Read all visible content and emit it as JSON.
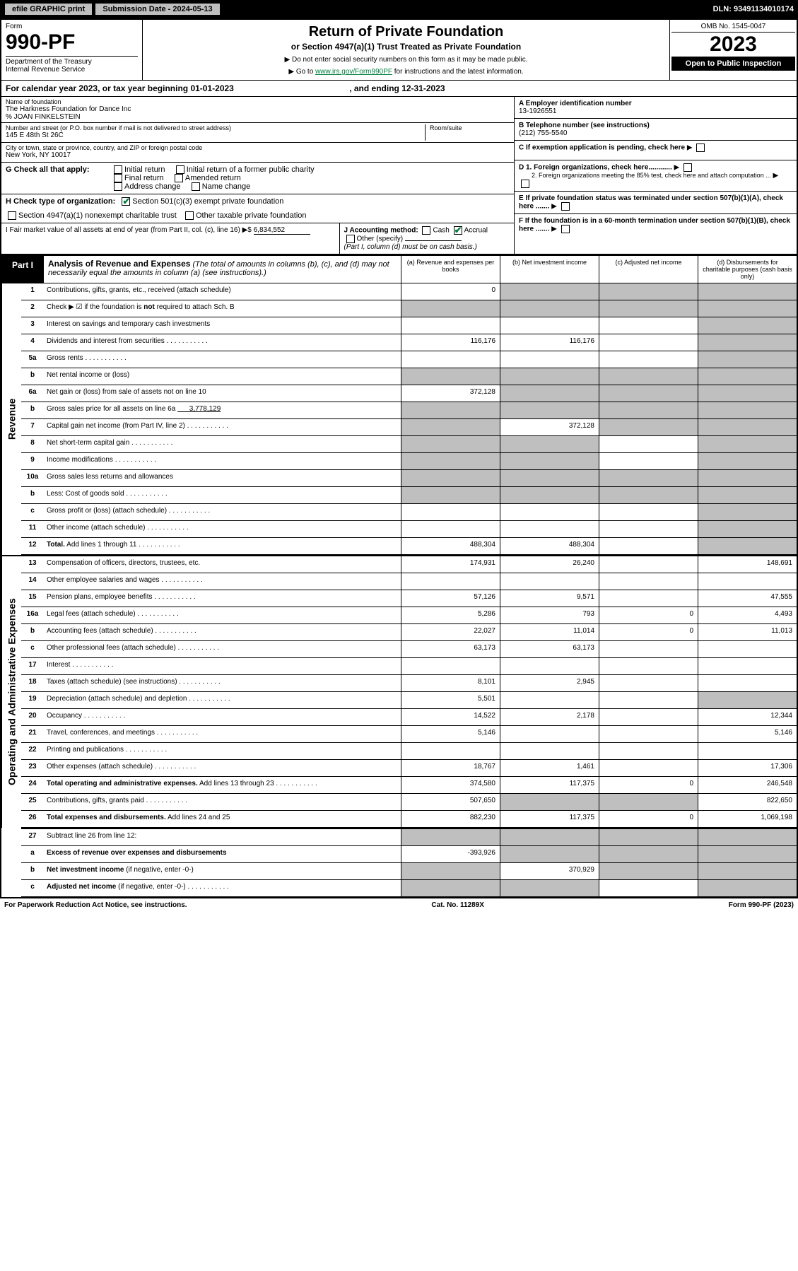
{
  "topbar": {
    "efile": "efile GRAPHIC print",
    "subdate_label": "Submission Date - 2024-05-13",
    "dln": "DLN: 93491134010174"
  },
  "hdr": {
    "form": "Form",
    "num": "990-PF",
    "dept": "Department of the Treasury\nInternal Revenue Service",
    "title": "Return of Private Foundation",
    "sub": "or Section 4947(a)(1) Trust Treated as Private Foundation",
    "instr1": "▶ Do not enter social security numbers on this form as it may be made public.",
    "instr2": "▶ Go to ",
    "link": "www.irs.gov/Form990PF",
    "instr3": " for instructions and the latest information.",
    "omb": "OMB No. 1545-0047",
    "year": "2023",
    "open": "Open to Public Inspection"
  },
  "caly": {
    "pre": "For calendar year 2023, or tax year beginning ",
    "start": "01-01-2023",
    "mid": ", and ending ",
    "end": "12-31-2023"
  },
  "name": {
    "lbl": "Name of foundation",
    "v1": "The Harkness Foundation for Dance Inc",
    "v2": "% JOAN FINKELSTEIN"
  },
  "addr": {
    "lbl": "Number and street (or P.O. box number if mail is not delivered to street address)",
    "val": "145 E 48th St 26C",
    "room": "Room/suite"
  },
  "city": {
    "lbl": "City or town, state or province, country, and ZIP or foreign postal code",
    "val": "New York, NY  10017"
  },
  "A": {
    "lbl": "A Employer identification number",
    "val": "13-1926551"
  },
  "B": {
    "lbl": "B Telephone number (see instructions)",
    "val": "(212) 755-5540"
  },
  "C": {
    "lbl": "C If exemption application is pending, check here"
  },
  "D": {
    "d1": "D 1. Foreign organizations, check here............",
    "d2": "2. Foreign organizations meeting the 85% test, check here and attach computation ..."
  },
  "E": {
    "lbl": "E If private foundation status was terminated under section 507(b)(1)(A), check here ......."
  },
  "F": {
    "lbl": "F If the foundation is in a 60-month termination under section 507(b)(1)(B), check here ......."
  },
  "G": {
    "lbl": "G Check all that apply:",
    "opts": [
      "Initial return",
      "Initial return of a former public charity",
      "Final return",
      "Amended return",
      "Address change",
      "Name change"
    ]
  },
  "H": {
    "lbl": "H Check type of organization:",
    "o1": "Section 501(c)(3) exempt private foundation",
    "o2": "Section 4947(a)(1) nonexempt charitable trust",
    "o3": "Other taxable private foundation"
  },
  "I": {
    "lbl": "I Fair market value of all assets at end of year (from Part II, col. (c), line 16) ▶$",
    "val": "6,834,552"
  },
  "J": {
    "lbl": "J Accounting method:",
    "cash": "Cash",
    "acc": "Accrual",
    "other": "Other (specify)",
    "note": "(Part I, column (d) must be on cash basis.)"
  },
  "part": {
    "lbl": "Part I",
    "title": "Analysis of Revenue and Expenses",
    "note": "(The total of amounts in columns (b), (c), and (d) may not necessarily equal the amounts in column (a) (see instructions).)",
    "ca": "(a) Revenue and expenses per books",
    "cb": "(b) Net investment income",
    "cc": "(c) Adjusted net income",
    "cd": "(d) Disbursements for charitable purposes (cash basis only)"
  },
  "rows": [
    {
      "n": "1",
      "d": "Contributions, gifts, grants, etc., received (attach schedule)",
      "a": "0",
      "b": "",
      "c": "",
      "dc": "",
      "gb": true,
      "gc": true,
      "gd": true
    },
    {
      "n": "2",
      "d": "Check ▶ ☑ if the foundation is <b>not</b> required to attach Sch. B",
      "a": "",
      "gb": true,
      "gc": true,
      "gd": true,
      "ga": true
    },
    {
      "n": "3",
      "d": "Interest on savings and temporary cash investments",
      "a": "",
      "b": "",
      "c": "",
      "dc": "",
      "gd": true
    },
    {
      "n": "4",
      "d": "Dividends and interest from securities",
      "dots": true,
      "a": "116,176",
      "b": "116,176",
      "c": "",
      "dc": "",
      "gd": true
    },
    {
      "n": "5a",
      "d": "Gross rents",
      "dots": true,
      "a": "",
      "b": "",
      "c": "",
      "dc": "",
      "gd": true
    },
    {
      "n": "b",
      "d": "Net rental income or (loss)",
      "a": "",
      "ga": true,
      "gb": true,
      "gc": true,
      "gd": true
    },
    {
      "n": "6a",
      "d": "Net gain or (loss) from sale of assets not on line 10",
      "a": "372,128",
      "gb": true,
      "gc": true,
      "gd": true
    },
    {
      "n": "b",
      "d": "Gross sales price for all assets on line 6a <u>&nbsp;&nbsp;&nbsp;&nbsp;&nbsp;&nbsp;3,778,129</u>",
      "ga": true,
      "gb": true,
      "gc": true,
      "gd": true
    },
    {
      "n": "7",
      "d": "Capital gain net income (from Part IV, line 2)",
      "dots": true,
      "a": "",
      "b": "372,128",
      "ga": true,
      "gc": true,
      "gd": true
    },
    {
      "n": "8",
      "d": "Net short-term capital gain",
      "dots": true,
      "a": "",
      "ga": true,
      "gb": true,
      "gd": true
    },
    {
      "n": "9",
      "d": "Income modifications",
      "dots": true,
      "ga": true,
      "gb": true,
      "gd": true
    },
    {
      "n": "10a",
      "d": "Gross sales less returns and allowances",
      "ga": true,
      "gb": true,
      "gc": true,
      "gd": true
    },
    {
      "n": "b",
      "d": "Less: Cost of goods sold",
      "dots": true,
      "ga": true,
      "gb": true,
      "gc": true,
      "gd": true
    },
    {
      "n": "c",
      "d": "Gross profit or (loss) (attach schedule)",
      "dots": true,
      "gd": true
    },
    {
      "n": "11",
      "d": "Other income (attach schedule)",
      "dots": true,
      "gd": true
    },
    {
      "n": "12",
      "d": "<b>Total.</b> Add lines 1 through 11",
      "dots": true,
      "a": "488,304",
      "b": "488,304",
      "gd": true
    }
  ],
  "exp": [
    {
      "n": "13",
      "d": "Compensation of officers, directors, trustees, etc.",
      "a": "174,931",
      "b": "26,240",
      "c": "",
      "dc": "148,691"
    },
    {
      "n": "14",
      "d": "Other employee salaries and wages",
      "dots": true
    },
    {
      "n": "15",
      "d": "Pension plans, employee benefits",
      "dots": true,
      "a": "57,126",
      "b": "9,571",
      "dc": "47,555"
    },
    {
      "n": "16a",
      "d": "Legal fees (attach schedule)",
      "dots": true,
      "a": "5,286",
      "b": "793",
      "c": "0",
      "dc": "4,493"
    },
    {
      "n": "b",
      "d": "Accounting fees (attach schedule)",
      "dots": true,
      "a": "22,027",
      "b": "11,014",
      "c": "0",
      "dc": "11,013"
    },
    {
      "n": "c",
      "d": "Other professional fees (attach schedule)",
      "dots": true,
      "a": "63,173",
      "b": "63,173"
    },
    {
      "n": "17",
      "d": "Interest",
      "dots": true
    },
    {
      "n": "18",
      "d": "Taxes (attach schedule) (see instructions)",
      "dots": true,
      "a": "8,101",
      "b": "2,945"
    },
    {
      "n": "19",
      "d": "Depreciation (attach schedule) and depletion",
      "dots": true,
      "a": "5,501",
      "gd": true
    },
    {
      "n": "20",
      "d": "Occupancy",
      "dots": true,
      "a": "14,522",
      "b": "2,178",
      "dc": "12,344"
    },
    {
      "n": "21",
      "d": "Travel, conferences, and meetings",
      "dots": true,
      "a": "5,146",
      "dc": "5,146"
    },
    {
      "n": "22",
      "d": "Printing and publications",
      "dots": true
    },
    {
      "n": "23",
      "d": "Other expenses (attach schedule)",
      "dots": true,
      "a": "18,767",
      "b": "1,461",
      "dc": "17,306"
    },
    {
      "n": "24",
      "d": "<b>Total operating and administrative expenses.</b> Add lines 13 through 23",
      "dots": true,
      "a": "374,580",
      "b": "117,375",
      "c": "0",
      "dc": "246,548"
    },
    {
      "n": "25",
      "d": "Contributions, gifts, grants paid",
      "dots": true,
      "a": "507,650",
      "gb": true,
      "gc": true,
      "dc": "822,650"
    },
    {
      "n": "26",
      "d": "<b>Total expenses and disbursements.</b> Add lines 24 and 25",
      "a": "882,230",
      "b": "117,375",
      "c": "0",
      "dc": "1,069,198"
    }
  ],
  "bot": [
    {
      "n": "27",
      "d": "Subtract line 26 from line 12:",
      "ga": true,
      "gb": true,
      "gc": true,
      "gd": true
    },
    {
      "n": "a",
      "d": "<b>Excess of revenue over expenses and disbursements</b>",
      "a": "-393,926",
      "gb": true,
      "gc": true,
      "gd": true
    },
    {
      "n": "b",
      "d": "<b>Net investment income</b> (if negative, enter -0-)",
      "ga": true,
      "b": "370,929",
      "gc": true,
      "gd": true
    },
    {
      "n": "c",
      "d": "<b>Adjusted net income</b> (if negative, enter -0-)",
      "dots": true,
      "ga": true,
      "gb": true,
      "gd": true
    }
  ],
  "foot": {
    "l": "For Paperwork Reduction Act Notice, see instructions.",
    "c": "Cat. No. 11289X",
    "r": "Form 990-PF (2023)"
  },
  "sides": {
    "rev": "Revenue",
    "exp": "Operating and Administrative Expenses"
  }
}
